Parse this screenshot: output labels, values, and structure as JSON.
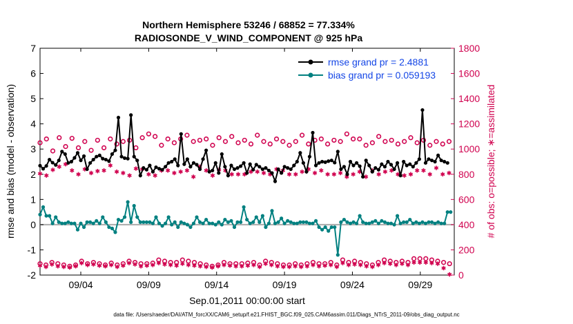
{
  "colors": {
    "rmse": "#000000",
    "bias": "#008080",
    "obs": "#d0004e",
    "legend_text": "#1446e6",
    "zero_line": "#aaaaaa"
  },
  "chart_data": {
    "type": "line",
    "title": "Northern Hemisphere 53246 / 68852 = 77.334%",
    "subtitle": "RADIOSONDE_V_WIND_COMPONENT @ 925 hPa",
    "xlabel": "Sep.01,2011 00:00:00 start",
    "ylabel": "rmse and bias (model - observation)",
    "ylabel_right": "# of obs: o=possible; ∗=assimilated",
    "x_ticks": [
      "09/04",
      "09/09",
      "09/14",
      "09/19",
      "09/24",
      "09/29"
    ],
    "x_tick_days": [
      4,
      9,
      14,
      19,
      24,
      29
    ],
    "xlim_days": [
      1,
      31.5
    ],
    "ylim": [
      -2,
      7
    ],
    "yticks": [
      "-2",
      "-1",
      "0",
      "1",
      "2",
      "3",
      "4",
      "5",
      "6",
      "7"
    ],
    "ylim_right": [
      0,
      1800
    ],
    "yticks_right": [
      "0",
      "200",
      "400",
      "600",
      "800",
      "1000",
      "1200",
      "1400",
      "1600",
      "1800"
    ],
    "legend": [
      "rmse grand pr = 2.4881",
      "bias grand pr = 0.059193"
    ],
    "footnote": "data file: /Users/raeder/DAI/ATM_forcXX/CAM6_setup/f.e21.FHIST_BGC.f09_025.CAM6assim.011/Diags_NTrS_2011-09/obs_diag_output.nc",
    "series": [
      {
        "name": "rmse",
        "values": [
          2.34,
          2.22,
          2.33,
          2.58,
          2.46,
          2.37,
          2.55,
          2.9,
          2.8,
          2.45,
          2.5,
          2.65,
          2.85,
          2.55,
          2.72,
          2.2,
          2.45,
          2.58,
          2.7,
          2.75,
          2.62,
          2.58,
          2.52,
          2.8,
          2.95,
          4.25,
          2.7,
          2.64,
          2.62,
          4.35,
          2.7,
          2.55,
          1.95,
          2.25,
          2.18,
          2.35,
          2.1,
          2.28,
          2.22,
          2.18,
          2.3,
          2.45,
          2.5,
          2.6,
          2.35,
          3.6,
          2.4,
          2.6,
          2.3,
          2.45,
          2.38,
          2.2,
          2.6,
          2.95,
          2.1,
          2.15,
          2.45,
          2.05,
          2.8,
          2.3,
          1.95,
          2.35,
          2.2,
          2.25,
          2.32,
          2.45,
          2.05,
          2.4,
          2.18,
          2.38,
          2.3,
          2.2,
          2.25,
          2.15,
          2.05,
          1.72,
          2.2,
          2.05,
          2.3,
          2.25,
          2.2,
          2.35,
          2.5,
          2.85,
          2.45,
          2.1,
          2.7,
          3.65,
          2.35,
          2.45,
          2.5,
          2.48,
          2.52,
          2.55,
          2.46,
          2.9,
          2.2,
          2.3,
          2.0,
          2.5,
          2.35,
          2.45,
          2.32,
          1.9,
          2.55,
          2.35,
          2.1,
          2.25,
          2.18,
          2.4,
          2.3,
          2.5,
          2.38,
          2.2,
          2.45,
          1.95,
          2.5,
          2.35,
          2.4,
          2.3,
          2.45,
          2.6,
          4.55,
          2.45,
          2.6,
          2.55,
          2.5,
          2.75,
          2.55,
          2.5,
          2.45
        ],
        "x_start_day": 1.0,
        "x_step_days": 0.2308
      },
      {
        "name": "bias",
        "values": [
          0.4,
          0.7,
          0.35,
          0.35,
          0.05,
          0.3,
          0.1,
          0.05,
          0.05,
          0.1,
          0.05,
          0.05,
          -0.2,
          0.05,
          -0.1,
          0.1,
          0.1,
          0.05,
          0.15,
          0.05,
          0.3,
          0.1,
          -0.1,
          -0.15,
          -0.3,
          0.2,
          0.15,
          0.3,
          0.9,
          0.1,
          0.75,
          0.3,
          0.1,
          0.1,
          0.1,
          0.1,
          0.05,
          0.3,
          0.05,
          -0.05,
          0.05,
          0.3,
          0.0,
          0.1,
          -0.1,
          0.1,
          0.05,
          0.0,
          -0.1,
          0.05,
          0.3,
          0.1,
          0.05,
          0.2,
          0.05,
          0.05,
          0.0,
          0.1,
          0.0,
          0.2,
          0.1,
          0.15,
          -0.1,
          0.1,
          0.1,
          0.7,
          0.2,
          0.05,
          0.1,
          0.3,
          0.1,
          0.35,
          -0.1,
          0.05,
          0.55,
          0.05,
          0.1,
          0.25,
          0.05,
          0.15,
          0.1,
          0.05,
          0.05,
          0.1,
          0.1,
          0.1,
          0.05,
          0.05,
          0.15,
          -0.1,
          -0.2,
          -0.1,
          -0.25,
          -0.1,
          -0.1,
          -1.2,
          0.1,
          0.2,
          0.1,
          0.05,
          0.1,
          0.05,
          0.35,
          0.1,
          0.05,
          0.05,
          0.1,
          0.15,
          0.05,
          0.15,
          0.1,
          0.05,
          0.05,
          0.0,
          0.35,
          0.05,
          0.1,
          0.1,
          0.2,
          0.05,
          0.1,
          0.05,
          0.1,
          0.05,
          0.1,
          0.1,
          0.05,
          0.1,
          0.05,
          0.05,
          0.5,
          0.5
        ],
        "x_start_day": 1.0,
        "x_step_days": 0.2308
      },
      {
        "name": "possible",
        "marker": "o",
        "values": [
          1050,
          1080,
          985,
          1090,
          1020,
          1085,
          1010,
          1060,
          990,
          1070,
          1010,
          1080,
          1040,
          1060,
          1070,
          1010,
          1090,
          1120,
          1100,
          1030,
          1080,
          1050,
          1080,
          1110,
          1060,
          1070,
          1080,
          1030,
          1090,
          1060,
          1100,
          1050,
          1070,
          1040,
          1110,
          1060,
          1040,
          1080,
          1060,
          1030,
          1060,
          1110,
          1040,
          1070,
          1080,
          1040,
          1070,
          1060,
          1120,
          1080,
          1080,
          1030,
          1050,
          1100,
          1060,
          1070,
          1040,
          1060,
          1090,
          1050,
          1070,
          1030,
          1060,
          1040,
          1060
        ],
        "x_start_day": 1.0,
        "x_step_days": 0.4706
      },
      {
        "name": "assimilated",
        "marker": "*",
        "values": [
          805,
          790,
          835,
          860,
          880,
          830,
          800,
          840,
          810,
          825,
          830,
          870,
          820,
          810,
          790,
          845,
          840,
          800,
          790,
          830,
          830,
          810,
          820,
          830,
          780,
          860,
          830,
          790,
          835,
          830,
          800,
          800,
          800,
          820,
          820,
          810,
          800,
          840,
          830,
          800,
          800,
          820,
          840,
          810,
          830,
          800,
          800,
          810,
          780,
          800,
          820,
          780,
          830,
          800,
          820,
          830,
          800,
          790,
          800,
          830,
          830,
          800,
          850,
          800,
          810
        ],
        "x_start_day": 1.0,
        "x_step_days": 0.4706
      },
      {
        "name": "possible_low",
        "marker": "o",
        "values": [
          90,
          80,
          100,
          90,
          80,
          70,
          80,
          110,
          90,
          100,
          90,
          80,
          95,
          80,
          90,
          110,
          100,
          90,
          90,
          95,
          120,
          110,
          100,
          100,
          120,
          110,
          100,
          90,
          80,
          70,
          80,
          100,
          90,
          90,
          90,
          95,
          100,
          80,
          110,
          100,
          90,
          80,
          80,
          90,
          80,
          90,
          100,
          90,
          90,
          100,
          80,
          120,
          100,
          110,
          100,
          90,
          80,
          100,
          120,
          110,
          100,
          110,
          100,
          130,
          130,
          130,
          120,
          110,
          100,
          90
        ],
        "x_start_day": 1.0,
        "x_step_days": 0.437
      },
      {
        "name": "assimilated_low",
        "marker": "*",
        "values": [
          75,
          65,
          85,
          70,
          65,
          60,
          70,
          95,
          80,
          85,
          75,
          70,
          80,
          65,
          75,
          95,
          85,
          70,
          75,
          80,
          95,
          85,
          80,
          75,
          90,
          80,
          75,
          70,
          65,
          60,
          70,
          80,
          75,
          70,
          70,
          75,
          80,
          65,
          90,
          80,
          70,
          65,
          65,
          70,
          65,
          70,
          80,
          70,
          75,
          80,
          65,
          95,
          80,
          85,
          80,
          70,
          65,
          80,
          95,
          90,
          80,
          90,
          80,
          100,
          100,
          100,
          95,
          90,
          55,
          5
        ],
        "x_start_day": 1.0,
        "x_step_days": 0.437
      }
    ]
  }
}
